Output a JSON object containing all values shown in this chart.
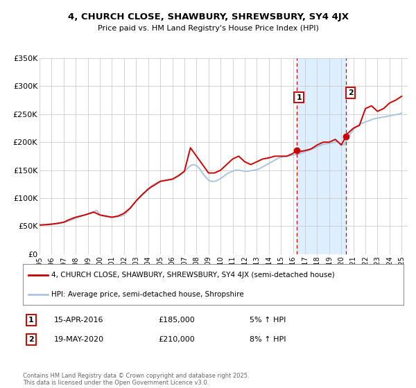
{
  "title_line1": "4, CHURCH CLOSE, SHAWBURY, SHREWSBURY, SY4 4JX",
  "title_line2": "Price paid vs. HM Land Registry's House Price Index (HPI)",
  "background_color": "#ffffff",
  "plot_bg_color": "#ffffff",
  "grid_color": "#cccccc",
  "xlim": [
    1995,
    2025.5
  ],
  "ylim": [
    0,
    350000
  ],
  "yticks": [
    0,
    50000,
    100000,
    150000,
    200000,
    250000,
    300000,
    350000
  ],
  "ytick_labels": [
    "£0",
    "£50K",
    "£100K",
    "£150K",
    "£200K",
    "£250K",
    "£300K",
    "£350K"
  ],
  "xtick_years": [
    1995,
    1996,
    1997,
    1998,
    1999,
    2000,
    2001,
    2002,
    2003,
    2004,
    2005,
    2006,
    2007,
    2008,
    2009,
    2010,
    2011,
    2012,
    2013,
    2014,
    2015,
    2016,
    2017,
    2018,
    2019,
    2020,
    2021,
    2022,
    2023,
    2024,
    2025
  ],
  "hpi_color": "#aac4e0",
  "price_color": "#cc0000",
  "vline_color": "#cc0000",
  "shade_color": "#ddeeff",
  "event1_x": 2016.29,
  "event1_y": 185000,
  "event2_x": 2020.38,
  "event2_y": 210000,
  "legend_label_price": "4, CHURCH CLOSE, SHAWBURY, SHREWSBURY, SY4 4JX (semi-detached house)",
  "legend_label_hpi": "HPI: Average price, semi-detached house, Shropshire",
  "annotation1_num": "1",
  "annotation1_date": "15-APR-2016",
  "annotation1_price": "£185,000",
  "annotation1_hpi": "5% ↑ HPI",
  "annotation2_num": "2",
  "annotation2_date": "19-MAY-2020",
  "annotation2_price": "£210,000",
  "annotation2_hpi": "8% ↑ HPI",
  "footer": "Contains HM Land Registry data © Crown copyright and database right 2025.\nThis data is licensed under the Open Government Licence v3.0.",
  "hpi_data_x": [
    1995.0,
    1995.25,
    1995.5,
    1995.75,
    1996.0,
    1996.25,
    1996.5,
    1996.75,
    1997.0,
    1997.25,
    1997.5,
    1997.75,
    1998.0,
    1998.25,
    1998.5,
    1998.75,
    1999.0,
    1999.25,
    1999.5,
    1999.75,
    2000.0,
    2000.25,
    2000.5,
    2000.75,
    2001.0,
    2001.25,
    2001.5,
    2001.75,
    2002.0,
    2002.25,
    2002.5,
    2002.75,
    2003.0,
    2003.25,
    2003.5,
    2003.75,
    2004.0,
    2004.25,
    2004.5,
    2004.75,
    2005.0,
    2005.25,
    2005.5,
    2005.75,
    2006.0,
    2006.25,
    2006.5,
    2006.75,
    2007.0,
    2007.25,
    2007.5,
    2007.75,
    2008.0,
    2008.25,
    2008.5,
    2008.75,
    2009.0,
    2009.25,
    2009.5,
    2009.75,
    2010.0,
    2010.25,
    2010.5,
    2010.75,
    2011.0,
    2011.25,
    2011.5,
    2011.75,
    2012.0,
    2012.25,
    2012.5,
    2012.75,
    2013.0,
    2013.25,
    2013.5,
    2013.75,
    2014.0,
    2014.25,
    2014.5,
    2014.75,
    2015.0,
    2015.25,
    2015.5,
    2015.75,
    2016.0,
    2016.25,
    2016.5,
    2016.75,
    2017.0,
    2017.25,
    2017.5,
    2017.75,
    2018.0,
    2018.25,
    2018.5,
    2018.75,
    2019.0,
    2019.25,
    2019.5,
    2019.75,
    2020.0,
    2020.25,
    2020.5,
    2020.75,
    2021.0,
    2021.25,
    2021.5,
    2021.75,
    2022.0,
    2022.25,
    2022.5,
    2022.75,
    2023.0,
    2023.25,
    2023.5,
    2023.75,
    2024.0,
    2024.25,
    2024.5,
    2024.75,
    2025.0
  ],
  "hpi_data_y": [
    52000,
    52500,
    53000,
    53500,
    54000,
    54500,
    55000,
    55500,
    56500,
    58000,
    60000,
    62000,
    64000,
    66000,
    68000,
    70000,
    72000,
    74000,
    76000,
    78000,
    70000,
    68000,
    67000,
    66000,
    65500,
    66000,
    67000,
    68000,
    70000,
    75000,
    81000,
    88000,
    95000,
    101000,
    107000,
    112000,
    117000,
    121000,
    125000,
    128000,
    130000,
    131000,
    132000,
    132500,
    133000,
    136000,
    139000,
    143000,
    147000,
    153000,
    158000,
    160000,
    158000,
    153000,
    145000,
    138000,
    132000,
    130000,
    130000,
    132000,
    135000,
    139000,
    143000,
    146000,
    148000,
    150000,
    150000,
    149000,
    148000,
    148000,
    149000,
    150000,
    151000,
    153000,
    156000,
    159000,
    162000,
    165000,
    168000,
    171000,
    173000,
    174000,
    175000,
    176000,
    177000,
    178000,
    179000,
    181000,
    183000,
    185000,
    187000,
    189000,
    192000,
    194000,
    196000,
    197000,
    198000,
    199000,
    200000,
    201000,
    195000,
    196000,
    205000,
    215000,
    222000,
    228000,
    232000,
    234000,
    236000,
    238000,
    240000,
    242000,
    243000,
    244000,
    245000,
    246000,
    247000,
    248000,
    249000,
    250000,
    252000
  ],
  "price_data_x": [
    1995.0,
    1995.5,
    1996.0,
    1996.5,
    1997.0,
    1997.5,
    1997.75,
    1998.0,
    1998.75,
    1999.5,
    2000.0,
    2001.0,
    2001.5,
    2002.0,
    2002.5,
    2003.0,
    2003.5,
    2004.0,
    2004.25,
    2004.5,
    2005.0,
    2005.5,
    2006.0,
    2006.5,
    2007.0,
    2007.5,
    2008.0,
    2008.5,
    2009.0,
    2009.5,
    2010.0,
    2010.5,
    2011.0,
    2011.5,
    2012.0,
    2012.5,
    2013.0,
    2013.5,
    2014.0,
    2014.5,
    2015.0,
    2015.5,
    2016.0,
    2016.29,
    2016.5,
    2017.0,
    2017.5,
    2018.0,
    2018.5,
    2019.0,
    2019.5,
    2020.0,
    2020.38,
    2020.5,
    2021.0,
    2021.5,
    2022.0,
    2022.5,
    2023.0,
    2023.5,
    2024.0,
    2024.5,
    2025.0
  ],
  "price_data_y": [
    52000,
    52500,
    53500,
    55000,
    57000,
    62000,
    64000,
    66000,
    70000,
    75000,
    70000,
    66000,
    68000,
    73000,
    82000,
    95000,
    106000,
    116000,
    120000,
    123000,
    130000,
    132000,
    134000,
    140000,
    148000,
    190000,
    175000,
    160000,
    145000,
    145000,
    150000,
    160000,
    170000,
    175000,
    165000,
    160000,
    165000,
    170000,
    172000,
    175000,
    175000,
    175000,
    180000,
    185000,
    183000,
    185000,
    188000,
    195000,
    200000,
    200000,
    205000,
    195000,
    210000,
    215000,
    225000,
    230000,
    260000,
    265000,
    255000,
    260000,
    270000,
    275000,
    282000
  ]
}
